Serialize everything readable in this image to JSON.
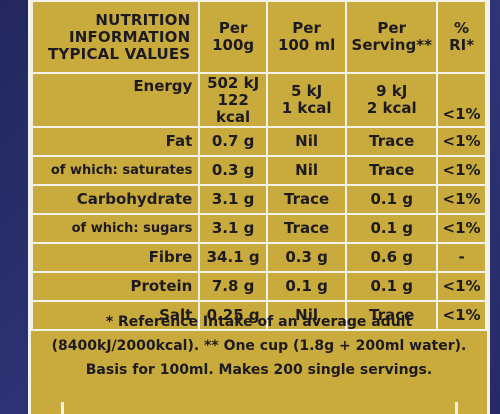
{
  "label": {
    "header": {
      "title_lines": [
        "NUTRITION",
        "INFORMATION",
        "TYPICAL VALUES"
      ],
      "col_100g": [
        "Per",
        "100g"
      ],
      "col_100ml": [
        "Per",
        "100 ml"
      ],
      "col_serving": [
        "Per",
        "Serving**"
      ],
      "col_ri": [
        "%",
        "RI*"
      ]
    },
    "energy": {
      "label": "Energy",
      "per_100g": [
        "502 kJ",
        "122 kcal"
      ],
      "per_100ml": [
        "5 kJ",
        "1 kcal"
      ],
      "per_serving": [
        "9 kJ",
        "2 kcal"
      ],
      "ri": "<1%"
    },
    "rows": [
      {
        "label": "Fat",
        "per_100g": "0.7 g",
        "per_100ml": "Nil",
        "per_serving": "Trace",
        "ri": "<1%"
      },
      {
        "label": "of which: saturates",
        "per_100g": "0.3 g",
        "per_100ml": "Nil",
        "per_serving": "Trace",
        "ri": "<1%"
      },
      {
        "label": "Carbohydrate",
        "per_100g": "3.1 g",
        "per_100ml": "Trace",
        "per_serving": "0.1 g",
        "ri": "<1%"
      },
      {
        "label": "of which: sugars",
        "per_100g": "3.1 g",
        "per_100ml": "Trace",
        "per_serving": "0.1 g",
        "ri": "<1%"
      },
      {
        "label": "Fibre",
        "per_100g": "34.1 g",
        "per_100ml": "0.3 g",
        "per_serving": "0.6 g",
        "ri": "-"
      },
      {
        "label": "Protein",
        "per_100g": "7.8 g",
        "per_100ml": "0.1 g",
        "per_serving": "0.1 g",
        "ri": "<1%"
      },
      {
        "label": "Salt",
        "per_100g": "0.25 g",
        "per_100ml": "Nil",
        "per_serving": "Trace",
        "ri": "<1%"
      }
    ],
    "footnote": [
      "* Reference Intake of an average adult",
      "(8400kJ/2000kcal). ** One cup (1.8g + 200ml water).",
      "Basis for 100ml. Makes 200 single servings."
    ]
  },
  "colors": {
    "panel": "#c9aa3c",
    "lines": "#f2f1ea",
    "text": "#1d1b21",
    "background": "#2a2e6a"
  }
}
